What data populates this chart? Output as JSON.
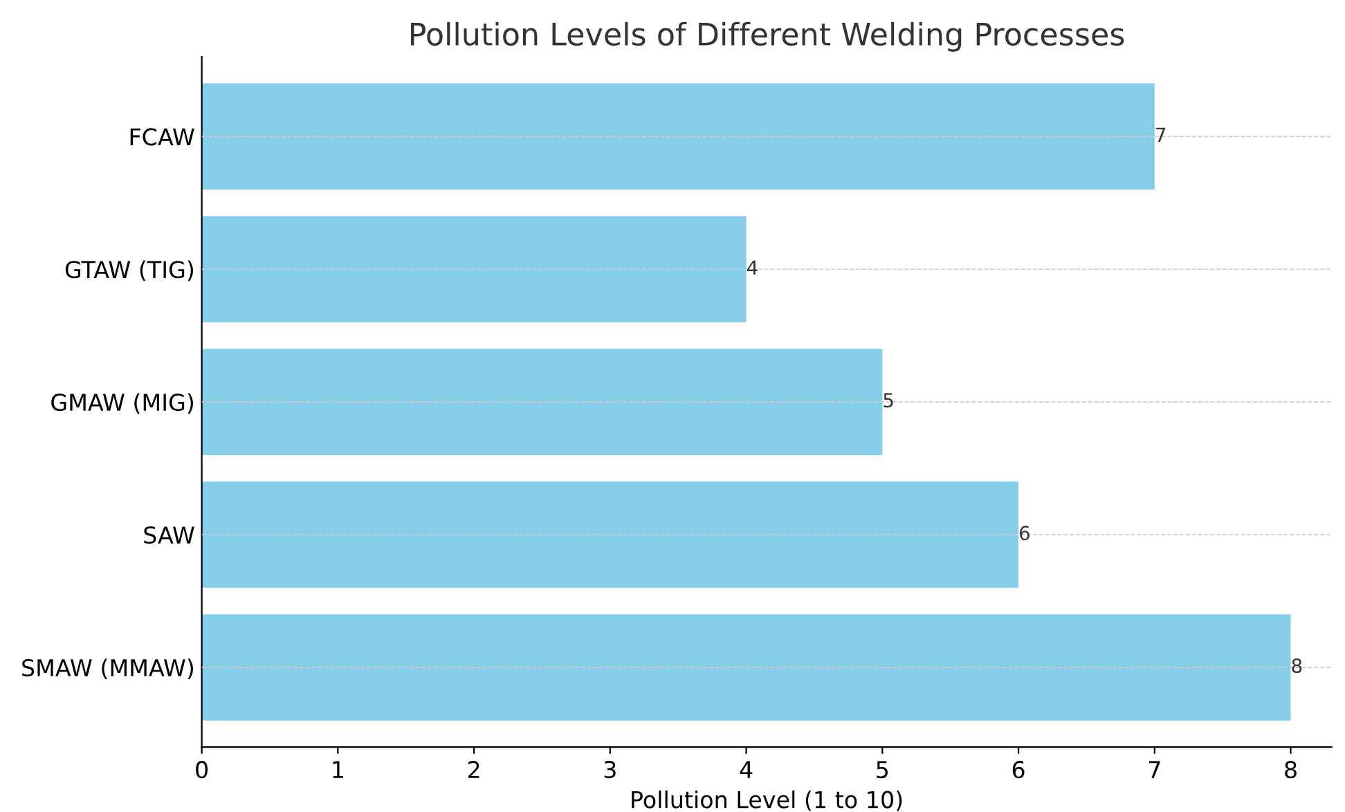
{
  "chart_data": {
    "type": "bar",
    "orientation": "horizontal",
    "title": "Pollution Levels of Different Welding Processes",
    "xlabel": "Pollution Level (1 to 10)",
    "categories": [
      "FCAW",
      "GTAW (TIG)",
      "GMAW (MIG)",
      "SAW",
      "SMAW (MMAW)"
    ],
    "values": [
      7,
      4,
      5,
      6,
      8
    ],
    "color": "#87ceeb",
    "xlim": [
      0,
      8.3
    ],
    "xticks": [
      0,
      1,
      2,
      3,
      4,
      5,
      6,
      7,
      8
    ],
    "grid": "y",
    "data_labels": true,
    "legend": false
  }
}
